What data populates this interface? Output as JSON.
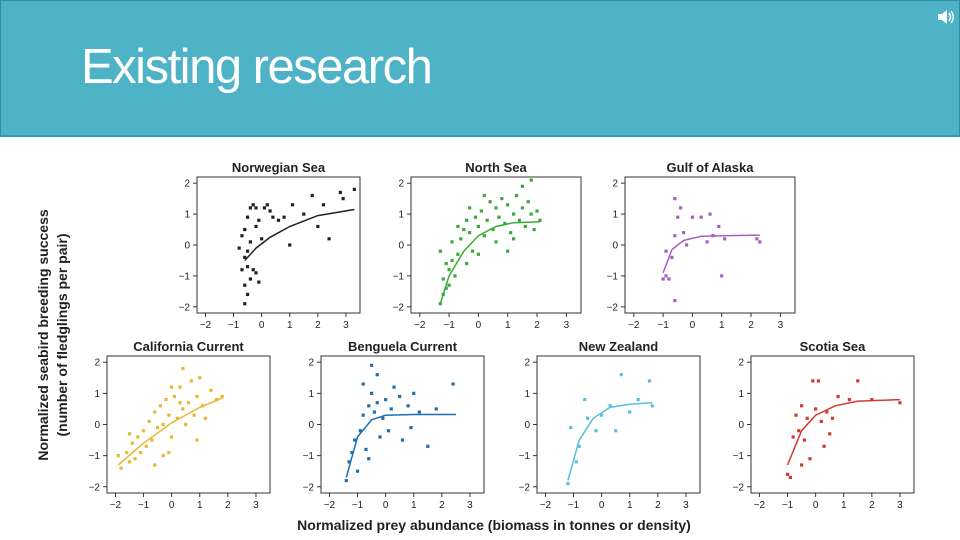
{
  "slide": {
    "title": "Existing research",
    "speaker_icon": "speaker-icon",
    "header_color": "#4fb3c8"
  },
  "figure": {
    "ylabel_line1": "Normalized seabird breeding success",
    "ylabel_line2": "(number of fledglings per pair)",
    "xlabel": "Normalized prey abundance (biomass in tonnes or density)"
  },
  "chart_data": [
    {
      "type": "scatter",
      "title": "Norwegian Sea",
      "color": "#222222",
      "xlim": [
        -2.3,
        3.5
      ],
      "ylim": [
        -2.2,
        2.2
      ],
      "xticks": [
        -2,
        -1,
        0,
        1,
        2,
        3
      ],
      "yticks": [
        -2,
        -1,
        0,
        1,
        2
      ],
      "points": [
        [
          -0.6,
          -1.9
        ],
        [
          -0.5,
          -1.6
        ],
        [
          -0.6,
          -1.3
        ],
        [
          -0.4,
          -1.1
        ],
        [
          -0.7,
          -0.8
        ],
        [
          -0.5,
          -0.7
        ],
        [
          -0.3,
          -0.8
        ],
        [
          -0.2,
          -0.9
        ],
        [
          -0.1,
          -1.2
        ],
        [
          -0.6,
          -0.4
        ],
        [
          -0.5,
          -0.2
        ],
        [
          -0.4,
          0.1
        ],
        [
          -0.6,
          0.5
        ],
        [
          -0.5,
          0.9
        ],
        [
          -0.4,
          1.2
        ],
        [
          -0.3,
          1.3
        ],
        [
          -0.2,
          1.2
        ],
        [
          -0.1,
          0.8
        ],
        [
          0.1,
          1.2
        ],
        [
          0.2,
          1.3
        ],
        [
          0.3,
          1.1
        ],
        [
          -0.2,
          0.6
        ],
        [
          0.0,
          0.2
        ],
        [
          0.4,
          0.9
        ],
        [
          0.6,
          0.8
        ],
        [
          0.8,
          0.9
        ],
        [
          1.1,
          1.3
        ],
        [
          1.5,
          1.0
        ],
        [
          1.8,
          1.6
        ],
        [
          2.0,
          0.6
        ],
        [
          2.2,
          1.3
        ],
        [
          2.4,
          0.2
        ],
        [
          2.8,
          1.7
        ],
        [
          2.9,
          1.5
        ],
        [
          3.3,
          1.8
        ],
        [
          1.0,
          0.0
        ],
        [
          -0.8,
          -0.1
        ],
        [
          -0.7,
          0.3
        ]
      ],
      "fit": [
        [
          -0.6,
          -0.5
        ],
        [
          -0.2,
          -0.1
        ],
        [
          0.3,
          0.25
        ],
        [
          1.0,
          0.6
        ],
        [
          2.0,
          0.95
        ],
        [
          3.3,
          1.15
        ]
      ]
    },
    {
      "type": "scatter",
      "title": "North Sea",
      "color": "#3aaa3a",
      "xlim": [
        -2.3,
        3.5
      ],
      "ylim": [
        -2.2,
        2.2
      ],
      "xticks": [
        -2,
        -1,
        0,
        1,
        2,
        3
      ],
      "yticks": [
        -2,
        -1,
        0,
        1,
        2
      ],
      "points": [
        [
          -1.3,
          -1.9
        ],
        [
          -1.2,
          -1.6
        ],
        [
          -1.1,
          -1.4
        ],
        [
          -1.2,
          -1.1
        ],
        [
          -1.0,
          -1.3
        ],
        [
          -1.0,
          -0.8
        ],
        [
          -0.9,
          -0.5
        ],
        [
          -0.8,
          -1.0
        ],
        [
          -1.1,
          -0.6
        ],
        [
          -0.9,
          0.1
        ],
        [
          -0.7,
          -0.3
        ],
        [
          -0.6,
          0.2
        ],
        [
          -0.5,
          0.5
        ],
        [
          -0.4,
          0.8
        ],
        [
          -0.3,
          0.4
        ],
        [
          -0.2,
          -0.2
        ],
        [
          -0.1,
          0.9
        ],
        [
          0.0,
          0.6
        ],
        [
          0.1,
          1.1
        ],
        [
          0.2,
          0.3
        ],
        [
          0.3,
          0.8
        ],
        [
          0.4,
          1.4
        ],
        [
          0.5,
          0.5
        ],
        [
          0.6,
          1.2
        ],
        [
          0.7,
          0.9
        ],
        [
          0.8,
          1.5
        ],
        [
          0.9,
          0.7
        ],
        [
          1.0,
          1.3
        ],
        [
          1.1,
          0.4
        ],
        [
          1.2,
          1.0
        ],
        [
          1.3,
          1.6
        ],
        [
          1.4,
          0.8
        ],
        [
          1.5,
          1.2
        ],
        [
          1.6,
          0.6
        ],
        [
          1.7,
          1.4
        ],
        [
          1.8,
          1.0
        ],
        [
          1.9,
          0.5
        ],
        [
          2.0,
          1.1
        ],
        [
          2.1,
          0.8
        ],
        [
          1.8,
          2.1
        ],
        [
          -0.4,
          -0.6
        ],
        [
          0.0,
          -0.3
        ],
        [
          0.6,
          0.1
        ],
        [
          1.0,
          -0.2
        ],
        [
          1.5,
          1.9
        ],
        [
          -1.3,
          -0.2
        ],
        [
          -0.7,
          0.6
        ],
        [
          0.2,
          1.6
        ],
        [
          1.2,
          0.2
        ],
        [
          -0.3,
          1.2
        ]
      ],
      "fit": [
        [
          -1.3,
          -1.9
        ],
        [
          -1.0,
          -1.0
        ],
        [
          -0.5,
          -0.2
        ],
        [
          0.0,
          0.3
        ],
        [
          0.6,
          0.6
        ],
        [
          1.2,
          0.72
        ],
        [
          2.1,
          0.75
        ]
      ]
    },
    {
      "type": "scatter",
      "title": "Gulf of Alaska",
      "color": "#a55fc0",
      "xlim": [
        -2.3,
        3.5
      ],
      "ylim": [
        -2.2,
        2.2
      ],
      "xticks": [
        -2,
        -1,
        0,
        1,
        2,
        3
      ],
      "yticks": [
        -2,
        -1,
        0,
        1,
        2
      ],
      "points": [
        [
          -1.0,
          -1.1
        ],
        [
          -0.9,
          -1.0
        ],
        [
          -0.8,
          -1.1
        ],
        [
          -0.6,
          -1.8
        ],
        [
          -0.7,
          -0.4
        ],
        [
          -0.6,
          0.3
        ],
        [
          -0.5,
          0.9
        ],
        [
          -0.6,
          1.5
        ],
        [
          -0.4,
          1.2
        ],
        [
          -0.3,
          0.4
        ],
        [
          -0.2,
          0.0
        ],
        [
          0.0,
          0.9
        ],
        [
          0.3,
          0.9
        ],
        [
          0.6,
          1.0
        ],
        [
          0.7,
          0.3
        ],
        [
          0.9,
          0.6
        ],
        [
          1.0,
          -1.0
        ],
        [
          1.1,
          0.2
        ],
        [
          2.2,
          0.2
        ],
        [
          2.3,
          0.1
        ],
        [
          -0.9,
          -0.2
        ],
        [
          0.5,
          0.1
        ]
      ],
      "fit": [
        [
          -1.0,
          -0.9
        ],
        [
          -0.7,
          -0.15
        ],
        [
          -0.3,
          0.15
        ],
        [
          0.3,
          0.28
        ],
        [
          1.0,
          0.3
        ],
        [
          2.3,
          0.32
        ]
      ]
    },
    {
      "type": "scatter",
      "title": "California Current",
      "color": "#e8b830",
      "xlim": [
        -2.3,
        3.5
      ],
      "ylim": [
        -2.2,
        2.2
      ],
      "xticks": [
        -2,
        -1,
        0,
        1,
        2,
        3
      ],
      "yticks": [
        -2,
        -1,
        0,
        1,
        2
      ],
      "points": [
        [
          -1.9,
          -1.0
        ],
        [
          -1.8,
          -1.4
        ],
        [
          -1.6,
          -0.9
        ],
        [
          -1.5,
          -1.2
        ],
        [
          -1.4,
          -0.6
        ],
        [
          -1.3,
          -1.1
        ],
        [
          -1.2,
          -0.4
        ],
        [
          -1.1,
          -0.9
        ],
        [
          -1.0,
          -0.2
        ],
        [
          -0.9,
          -0.7
        ],
        [
          -0.8,
          0.1
        ],
        [
          -0.7,
          -0.5
        ],
        [
          -0.6,
          0.4
        ],
        [
          -0.5,
          -0.1
        ],
        [
          -0.4,
          0.6
        ],
        [
          -0.3,
          0.0
        ],
        [
          -0.2,
          0.8
        ],
        [
          -0.1,
          0.3
        ],
        [
          0.0,
          -0.4
        ],
        [
          0.1,
          0.9
        ],
        [
          0.2,
          0.2
        ],
        [
          0.3,
          1.2
        ],
        [
          0.4,
          0.5
        ],
        [
          0.5,
          0.0
        ],
        [
          0.6,
          0.7
        ],
        [
          0.7,
          1.4
        ],
        [
          0.8,
          0.3
        ],
        [
          0.9,
          0.9
        ],
        [
          1.0,
          1.5
        ],
        [
          1.1,
          0.6
        ],
        [
          1.2,
          0.2
        ],
        [
          1.4,
          1.1
        ],
        [
          1.6,
          0.8
        ],
        [
          1.8,
          0.9
        ],
        [
          -0.3,
          -1.0
        ],
        [
          0.0,
          1.2
        ],
        [
          -0.6,
          -1.3
        ],
        [
          0.4,
          1.8
        ],
        [
          -1.5,
          -0.3
        ],
        [
          0.9,
          -0.5
        ],
        [
          -0.1,
          -0.9
        ],
        [
          0.3,
          0.7
        ]
      ],
      "fit": [
        [
          -1.9,
          -1.3
        ],
        [
          -1.0,
          -0.6
        ],
        [
          0.0,
          0.05
        ],
        [
          1.0,
          0.55
        ],
        [
          1.8,
          0.85
        ]
      ]
    },
    {
      "type": "scatter",
      "title": "Benguela Current",
      "color": "#1f6fb0",
      "xlim": [
        -2.3,
        3.5
      ],
      "ylim": [
        -2.2,
        2.2
      ],
      "xticks": [
        -2,
        -1,
        0,
        1,
        2,
        3
      ],
      "yticks": [
        -2,
        -1,
        0,
        1,
        2
      ],
      "points": [
        [
          -1.4,
          -1.8
        ],
        [
          -1.3,
          -1.2
        ],
        [
          -1.2,
          -0.9
        ],
        [
          -1.1,
          -0.5
        ],
        [
          -1.0,
          -1.5
        ],
        [
          -0.9,
          -0.2
        ],
        [
          -0.8,
          0.3
        ],
        [
          -0.7,
          -0.8
        ],
        [
          -0.6,
          0.6
        ],
        [
          -0.5,
          1.0
        ],
        [
          -0.4,
          0.4
        ],
        [
          -0.3,
          0.7
        ],
        [
          -0.2,
          -0.4
        ],
        [
          -0.1,
          0.2
        ],
        [
          0.0,
          0.8
        ],
        [
          0.1,
          -0.2
        ],
        [
          0.2,
          0.5
        ],
        [
          0.3,
          1.2
        ],
        [
          0.5,
          0.9
        ],
        [
          0.6,
          -0.5
        ],
        [
          0.8,
          0.6
        ],
        [
          1.0,
          1.0
        ],
        [
          1.2,
          0.4
        ],
        [
          1.5,
          -0.7
        ],
        [
          1.8,
          0.5
        ],
        [
          2.4,
          1.3
        ],
        [
          -0.5,
          1.9
        ],
        [
          -0.3,
          1.6
        ],
        [
          -0.6,
          -1.1
        ],
        [
          0.9,
          -0.1
        ],
        [
          -0.8,
          1.3
        ]
      ],
      "fit": [
        [
          -1.4,
          -1.7
        ],
        [
          -1.0,
          -0.4
        ],
        [
          -0.5,
          0.15
        ],
        [
          0.0,
          0.3
        ],
        [
          1.0,
          0.32
        ],
        [
          2.5,
          0.32
        ]
      ]
    },
    {
      "type": "scatter",
      "title": "New Zealand",
      "color": "#58c0d8",
      "xlim": [
        -2.3,
        3.5
      ],
      "ylim": [
        -2.2,
        2.2
      ],
      "xticks": [
        -2,
        -1,
        0,
        1,
        2,
        3
      ],
      "yticks": [
        -2,
        -1,
        0,
        1,
        2
      ],
      "points": [
        [
          -1.2,
          -1.9
        ],
        [
          -1.1,
          -0.1
        ],
        [
          -0.8,
          -0.7
        ],
        [
          -0.6,
          0.8
        ],
        [
          -0.5,
          0.2
        ],
        [
          -0.2,
          -0.2
        ],
        [
          0.0,
          0.3
        ],
        [
          0.3,
          0.6
        ],
        [
          0.5,
          -0.2
        ],
        [
          0.7,
          1.6
        ],
        [
          1.0,
          0.4
        ],
        [
          1.3,
          0.8
        ],
        [
          1.7,
          1.4
        ],
        [
          1.8,
          0.6
        ],
        [
          -0.9,
          -1.2
        ]
      ],
      "fit": [
        [
          -1.2,
          -1.8
        ],
        [
          -0.8,
          -0.5
        ],
        [
          -0.3,
          0.2
        ],
        [
          0.3,
          0.55
        ],
        [
          1.0,
          0.65
        ],
        [
          1.8,
          0.7
        ]
      ]
    },
    {
      "type": "scatter",
      "title": "Scotia Sea",
      "color": "#d23a32",
      "xlim": [
        -2.3,
        3.5
      ],
      "ylim": [
        -2.2,
        2.2
      ],
      "xticks": [
        -2,
        -1,
        0,
        1,
        2,
        3
      ],
      "yticks": [
        -2,
        -1,
        0,
        1,
        2
      ],
      "points": [
        [
          -1.0,
          -1.6
        ],
        [
          -0.9,
          -1.7
        ],
        [
          -0.8,
          -0.4
        ],
        [
          -0.7,
          0.3
        ],
        [
          -0.6,
          -0.2
        ],
        [
          -0.5,
          0.6
        ],
        [
          -0.4,
          -0.5
        ],
        [
          -0.3,
          0.2
        ],
        [
          -0.2,
          -1.1
        ],
        [
          -0.1,
          1.4
        ],
        [
          0.0,
          0.5
        ],
        [
          0.1,
          1.4
        ],
        [
          0.2,
          0.1
        ],
        [
          0.3,
          -0.7
        ],
        [
          0.4,
          0.4
        ],
        [
          0.5,
          -0.3
        ],
        [
          0.8,
          0.9
        ],
        [
          1.2,
          0.8
        ],
        [
          1.5,
          1.4
        ],
        [
          2.0,
          0.8
        ],
        [
          3.0,
          0.7
        ],
        [
          -0.5,
          -1.3
        ],
        [
          0.6,
          0.2
        ]
      ],
      "fit": [
        [
          -1.0,
          -1.3
        ],
        [
          -0.5,
          -0.2
        ],
        [
          0.0,
          0.3
        ],
        [
          0.7,
          0.6
        ],
        [
          1.5,
          0.75
        ],
        [
          3.0,
          0.8
        ]
      ]
    }
  ]
}
